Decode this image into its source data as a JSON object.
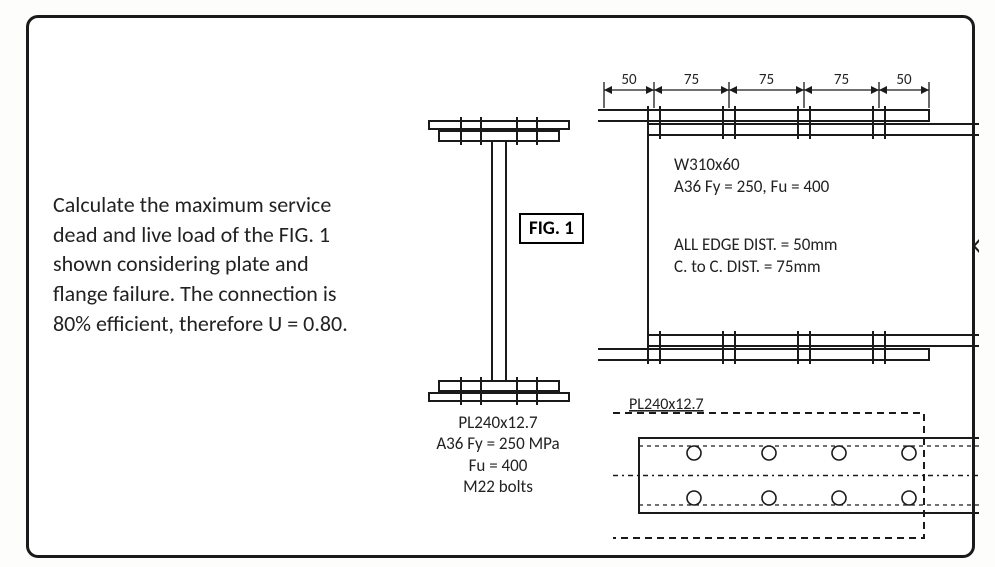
{
  "prompt_text": "Calculate the maximum service dead and live load of the FIG. 1 shown considering plate and flange failure. The connection is 80% efficient, therefore U = 0.80.",
  "fig_label": "FIG. 1",
  "i_beam": {
    "specs": [
      "PL240x12.7",
      "A36 Fy = 250 MPa",
      "Fu = 400",
      "M22 bolts"
    ],
    "flange_width": 120,
    "flange_thk": 10,
    "web_thk": 14,
    "depth": 260,
    "plate_width": 140,
    "plate_thk": 8,
    "plate_gap": 2,
    "stroke": "#1a1a1a",
    "fill": "#ffffff"
  },
  "side_view": {
    "top_dims": [
      "50",
      "75",
      "75",
      "75",
      "50"
    ],
    "dim_fontsize": 15,
    "beam_label1": "W310x60",
    "beam_label2": "A36 Fy = 250, Fu = 400",
    "note1": "ALL EDGE DIST. = 50mm",
    "note2": "C. to C. DIST. = 75mm",
    "label_fontsize": 17,
    "plate_len": 325,
    "beam_len": 380,
    "segs": [
      50,
      75,
      75,
      75,
      50
    ],
    "plate_thk": 11,
    "flange_thk": 11,
    "gap": 3,
    "web_depth": 200,
    "stroke": "#1a1a1a"
  },
  "plan_view": {
    "label": "PL240x12.7",
    "label_fontsize": 16,
    "plate_w": 305,
    "plate_h": 125,
    "beam_w": 360,
    "beam_h": 75,
    "bolt_r": 7,
    "bolt_stroke": 1.6,
    "bolt_cols": [
      75,
      150,
      220,
      290
    ],
    "bolt_rows": [
      40,
      85
    ],
    "stroke": "#1a1a1a",
    "dash": "7,5"
  },
  "colors": {
    "line": "#1a1a1a",
    "bg": "#ffffff",
    "text": "#222222"
  }
}
